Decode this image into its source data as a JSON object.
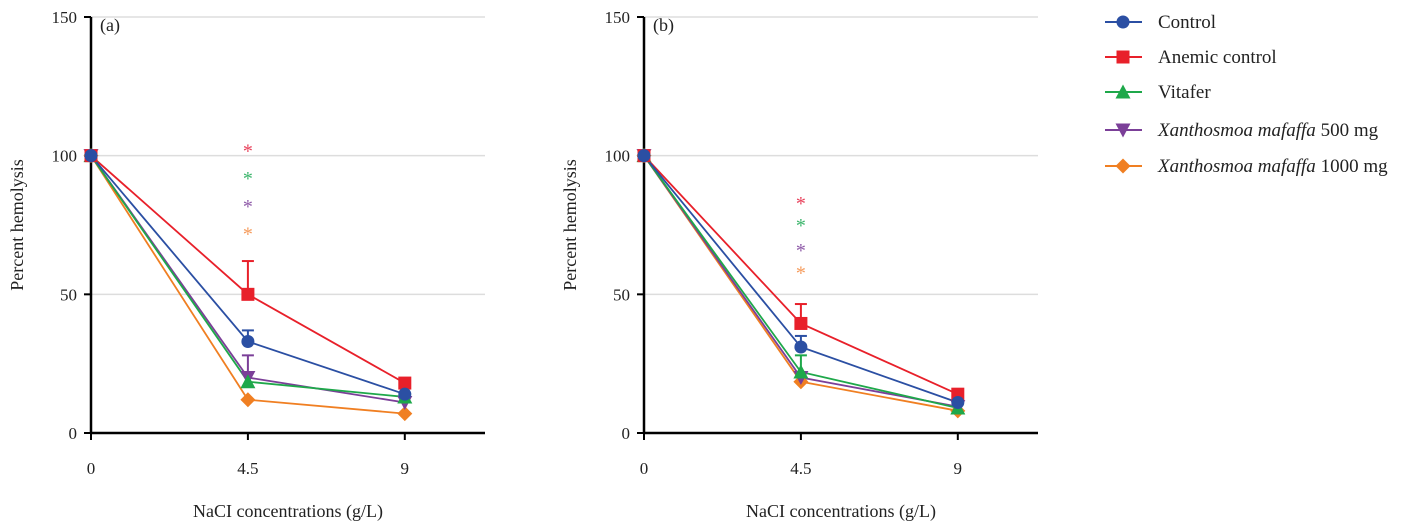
{
  "colors": {
    "Control": "#2b4fa3",
    "Anemic control": "#e8202a",
    "Vitafer": "#1ea84a",
    "Xanthosmoa mafaffa 500 mg": "#7b3f98",
    "Xanthosmoa mafaffa 1000 mg": "#f07f22",
    "grid": "#dddddd",
    "axis": "#000000"
  },
  "legend": {
    "placement": "right",
    "italic_term": "Xanthosmoa mafaffa",
    "entries": [
      {
        "name": "Control",
        "marker": "circle"
      },
      {
        "name": "Anemic control",
        "marker": "square"
      },
      {
        "name": "Vitafer",
        "marker": "triangle-up"
      },
      {
        "name": "Xanthosmoa mafaffa 500 mg",
        "marker": "triangle-down"
      },
      {
        "name": "Xanthosmoa mafaffa 1000 mg",
        "marker": "diamond"
      }
    ]
  },
  "chart_data": [
    {
      "type": "line",
      "panel_label": "(a)",
      "xlabel": "NaCI concentrations (g/L)",
      "ylabel": "Percent hemolysis",
      "x": [
        0,
        4.5,
        9
      ],
      "x_ticks": [
        "0",
        "4.5",
        "9"
      ],
      "y_ticks": [
        "0",
        "50",
        "100",
        "150"
      ],
      "xlim": [
        0,
        11.3
      ],
      "ylim": [
        0,
        150
      ],
      "grid": "horizontal",
      "series": [
        {
          "name": "Control",
          "values": [
            100,
            33,
            14
          ],
          "error_upper": [
            0,
            4,
            0
          ]
        },
        {
          "name": "Anemic control",
          "values": [
            100,
            50,
            18
          ],
          "error_upper": [
            0,
            12,
            0
          ]
        },
        {
          "name": "Vitafer",
          "values": [
            100,
            18.5,
            13
          ],
          "error_upper": [
            0,
            0,
            0
          ]
        },
        {
          "name": "Xanthosmoa mafaffa 500 mg",
          "values": [
            100,
            20,
            11
          ],
          "error_upper": [
            0,
            8,
            0
          ]
        },
        {
          "name": "Xanthosmoa mafaffa 1000 mg",
          "values": [
            100,
            12,
            7
          ],
          "error_upper": [
            0,
            0,
            0
          ]
        }
      ],
      "annotations": [
        {
          "text": "*",
          "x": 4.5,
          "y": 103,
          "series": "Anemic control"
        },
        {
          "text": "*",
          "x": 4.5,
          "y": 93,
          "series": "Vitafer"
        },
        {
          "text": "*",
          "x": 4.5,
          "y": 83,
          "series": "Xanthosmoa mafaffa 500 mg"
        },
        {
          "text": "*",
          "x": 4.5,
          "y": 73,
          "series": "Xanthosmoa mafaffa 1000 mg"
        }
      ]
    },
    {
      "type": "line",
      "panel_label": "(b)",
      "xlabel": "NaCI concentrations (g/L)",
      "ylabel": "Percent hemolysis",
      "x": [
        0,
        4.5,
        9
      ],
      "x_ticks": [
        "0",
        "4.5",
        "9"
      ],
      "y_ticks": [
        "0",
        "50",
        "100",
        "150"
      ],
      "xlim": [
        0,
        11.3
      ],
      "ylim": [
        0,
        150
      ],
      "grid": "horizontal",
      "series": [
        {
          "name": "Control",
          "values": [
            100,
            31,
            11
          ],
          "error_upper": [
            0,
            4,
            0
          ]
        },
        {
          "name": "Anemic control",
          "values": [
            100,
            39.5,
            14
          ],
          "error_upper": [
            0,
            7,
            0
          ]
        },
        {
          "name": "Vitafer",
          "values": [
            100,
            22,
            9
          ],
          "error_upper": [
            0,
            6,
            0
          ]
        },
        {
          "name": "Xanthosmoa mafaffa 500 mg",
          "values": [
            100,
            20,
            9.5
          ],
          "error_upper": [
            0,
            0,
            0
          ]
        },
        {
          "name": "Xanthosmoa mafaffa 1000 mg",
          "values": [
            100,
            18.5,
            8
          ],
          "error_upper": [
            0,
            0,
            0
          ]
        }
      ],
      "annotations": [
        {
          "text": "*",
          "x": 4.5,
          "y": 84,
          "series": "Anemic control"
        },
        {
          "text": "*",
          "x": 4.5,
          "y": 76,
          "series": "Vitafer"
        },
        {
          "text": "*",
          "x": 4.5,
          "y": 67,
          "series": "Xanthosmoa mafaffa 500 mg"
        },
        {
          "text": "*",
          "x": 4.5,
          "y": 59,
          "series": "Xanthosmoa mafaffa 1000 mg"
        }
      ]
    }
  ]
}
